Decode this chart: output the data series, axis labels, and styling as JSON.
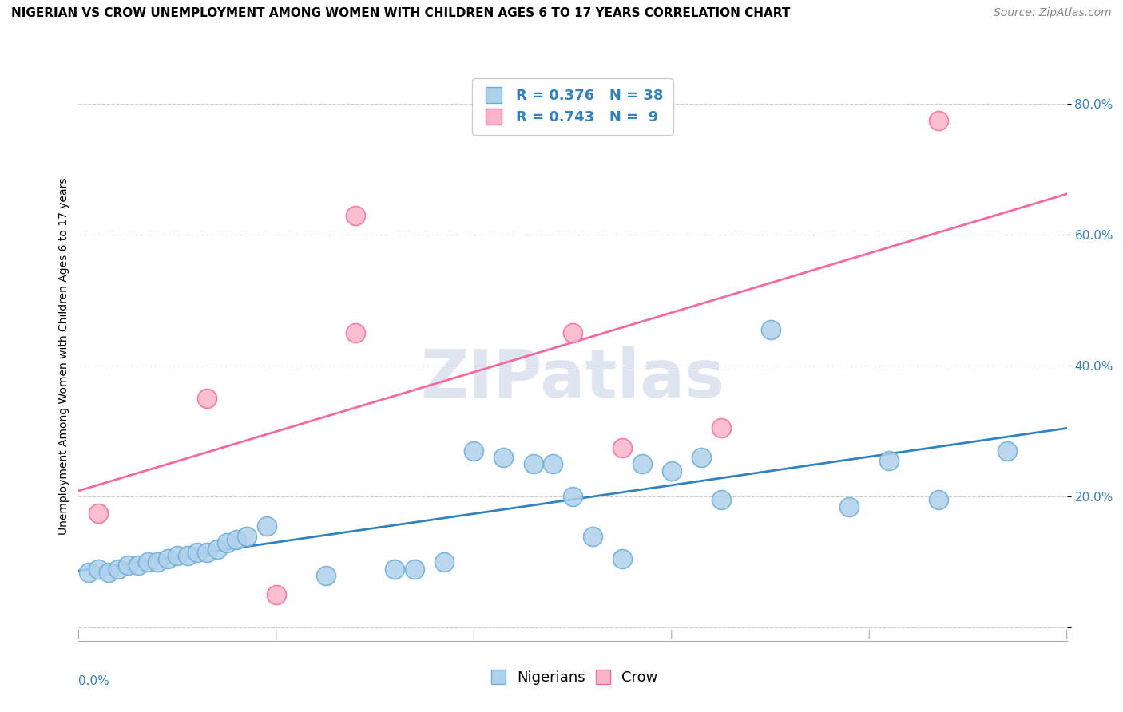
{
  "title": "NIGERIAN VS CROW UNEMPLOYMENT AMONG WOMEN WITH CHILDREN AGES 6 TO 17 YEARS CORRELATION CHART",
  "source": "Source: ZipAtlas.com",
  "ylabel": "Unemployment Among Women with Children Ages 6 to 17 years",
  "xlim": [
    0.0,
    0.1
  ],
  "ylim": [
    -0.02,
    0.85
  ],
  "yticks": [
    0.0,
    0.2,
    0.4,
    0.6,
    0.8
  ],
  "ytick_labels": [
    "",
    "20.0%",
    "40.0%",
    "60.0%",
    "80.0%"
  ],
  "watermark": "ZIPatlas",
  "nigerians_x": [
    0.001,
    0.002,
    0.003,
    0.004,
    0.005,
    0.006,
    0.007,
    0.008,
    0.009,
    0.01,
    0.011,
    0.012,
    0.013,
    0.014,
    0.015,
    0.016,
    0.017,
    0.019,
    0.025,
    0.032,
    0.034,
    0.037,
    0.04,
    0.043,
    0.046,
    0.048,
    0.05,
    0.052,
    0.055,
    0.057,
    0.06,
    0.063,
    0.065,
    0.07,
    0.078,
    0.082,
    0.087,
    0.094
  ],
  "nigerians_y": [
    0.085,
    0.09,
    0.085,
    0.09,
    0.095,
    0.095,
    0.1,
    0.1,
    0.105,
    0.11,
    0.11,
    0.115,
    0.115,
    0.12,
    0.13,
    0.135,
    0.14,
    0.155,
    0.08,
    0.09,
    0.09,
    0.1,
    0.27,
    0.26,
    0.25,
    0.25,
    0.2,
    0.14,
    0.105,
    0.25,
    0.24,
    0.26,
    0.195,
    0.455,
    0.185,
    0.255,
    0.195,
    0.27
  ],
  "crow_x": [
    0.002,
    0.013,
    0.02,
    0.028,
    0.028,
    0.05,
    0.055,
    0.065,
    0.087
  ],
  "crow_y": [
    0.175,
    0.35,
    0.05,
    0.63,
    0.45,
    0.45,
    0.275,
    0.305,
    0.775
  ],
  "nigerian_color": "#6baed6",
  "nigerian_fill": "#afd0eb",
  "crow_color": "#f768a1",
  "crow_fill": "#fbb4c8",
  "nigerian_R": "0.376",
  "nigerian_N": "38",
  "crow_R": "0.743",
  "crow_N": "9",
  "nigerian_line_color": "#3182bd",
  "crow_line_color": "#f768a1",
  "title_fontsize": 11,
  "source_fontsize": 10,
  "legend_fontsize": 13,
  "axis_label_fontsize": 10,
  "tick_fontsize": 11,
  "watermark_color": "#c8d4e8",
  "watermark_fontsize": 60,
  "grid_color": "#cccccc"
}
